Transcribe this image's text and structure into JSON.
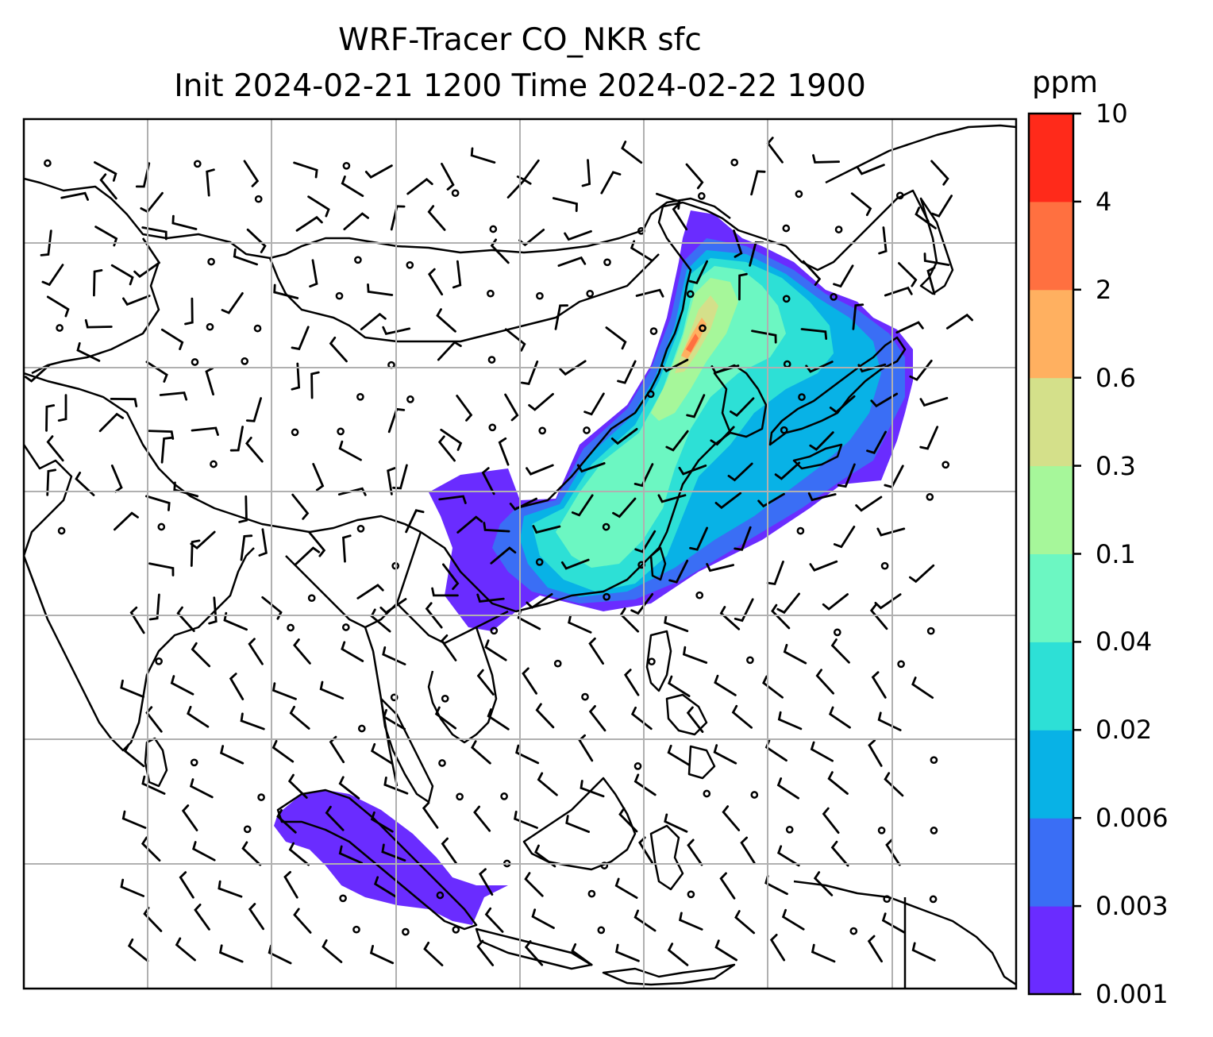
{
  "title_line1": "WRF-Tracer CO_NKR sfc",
  "title_line2": "Init 2024-02-21 1200 Time 2024-02-22 1900",
  "colorbar": {
    "unit": "ppm",
    "levels": [
      "0.001",
      "0.003",
      "0.006",
      "0.02",
      "0.04",
      "0.1",
      "0.3",
      "0.6",
      "2",
      "4",
      "10"
    ],
    "colors": [
      "#6a2cff",
      "#3a6ef5",
      "#08b2e6",
      "#2de0d6",
      "#6cf7c2",
      "#a6f79a",
      "#d4e08a",
      "#ffb060",
      "#ff7040",
      "#ff2a1a"
    ]
  },
  "map": {
    "gridline_color": "#b0b0b0",
    "coastline_color": "#000000",
    "plume_regions": [
      "East China / Korea / Japan",
      "Sumatra"
    ]
  }
}
